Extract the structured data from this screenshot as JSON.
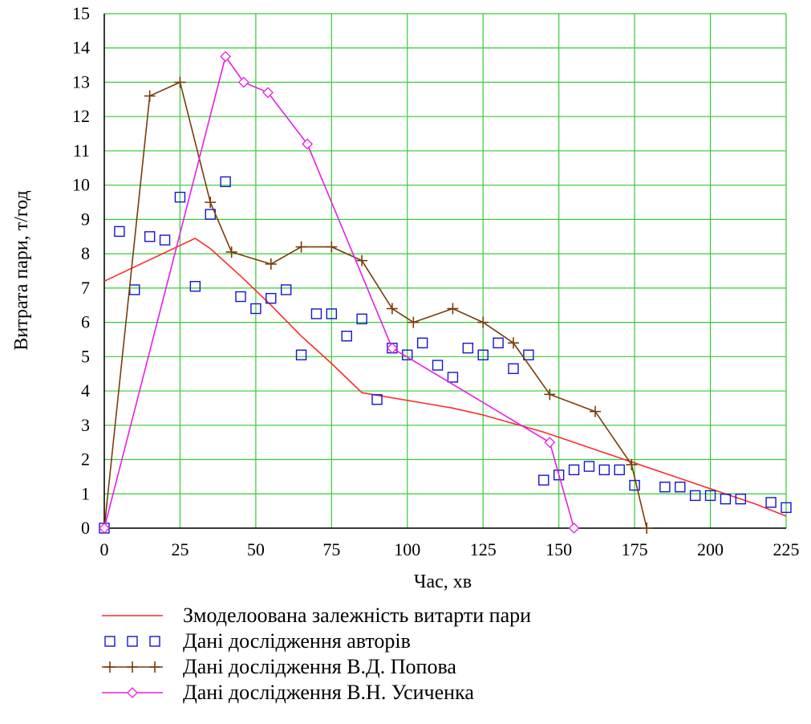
{
  "chart_data": {
    "type": "line",
    "xlabel": "Час, хв",
    "ylabel": "Витрата пари, т/год",
    "xlim": [
      0,
      225
    ],
    "ylim": [
      0,
      15
    ],
    "x_ticks": [
      0,
      25,
      50,
      75,
      100,
      125,
      150,
      175,
      200,
      225
    ],
    "y_ticks": [
      0,
      1,
      2,
      3,
      4,
      5,
      6,
      7,
      8,
      9,
      10,
      11,
      12,
      13,
      14,
      15
    ],
    "grid": true,
    "grid_color": "#33cc33",
    "legend_placement": "bottom",
    "series": [
      {
        "name": "Змоделоована  залежність витарти пари",
        "style": "line",
        "color": "#ff2a2a",
        "x": [
          0,
          30,
          35,
          45,
          55,
          65,
          75,
          85,
          95,
          105,
          115,
          125,
          135,
          145,
          155,
          165,
          175,
          185,
          195,
          205,
          215,
          225
        ],
        "y": [
          7.2,
          8.45,
          8.15,
          7.35,
          6.5,
          5.6,
          4.8,
          3.95,
          3.8,
          3.65,
          3.5,
          3.3,
          3.05,
          2.8,
          2.5,
          2.2,
          1.9,
          1.6,
          1.3,
          1.0,
          0.7,
          0.35
        ]
      },
      {
        "name": "Дані дослідження авторів",
        "style": "markers-square",
        "color": "#1414d2",
        "x": [
          0,
          5,
          10,
          15,
          20,
          25,
          30,
          35,
          40,
          45,
          50,
          55,
          60,
          65,
          70,
          75,
          80,
          85,
          90,
          95,
          100,
          105,
          110,
          115,
          120,
          125,
          130,
          135,
          140,
          145,
          150,
          155,
          160,
          165,
          170,
          175,
          185,
          190,
          195,
          200,
          205,
          210,
          220,
          225
        ],
        "y": [
          0,
          8.65,
          6.95,
          8.5,
          8.4,
          9.65,
          7.05,
          9.15,
          10.1,
          6.75,
          6.4,
          6.7,
          6.95,
          5.05,
          6.25,
          6.25,
          5.6,
          6.1,
          3.75,
          5.25,
          5.05,
          5.4,
          4.75,
          4.4,
          5.25,
          5.05,
          5.4,
          4.65,
          5.05,
          1.4,
          1.55,
          1.7,
          1.8,
          1.7,
          1.7,
          1.25,
          1.2,
          1.2,
          0.95,
          0.95,
          0.85,
          0.85,
          0.75,
          0.6
        ]
      },
      {
        "name": "Дані дослідження В.Д. Попова",
        "style": "line-plus",
        "color": "#7a3c0a",
        "x": [
          0,
          15,
          25,
          35,
          42,
          55,
          65,
          75,
          85,
          95,
          102,
          115,
          125,
          135,
          147,
          162,
          174,
          179
        ],
        "y": [
          0,
          12.6,
          13.0,
          9.5,
          8.05,
          7.7,
          8.2,
          8.2,
          7.8,
          6.4,
          6.0,
          6.4,
          6.0,
          5.4,
          3.9,
          3.4,
          1.85,
          0
        ]
      },
      {
        "name": "Дані дослідження В.Н. Усиченка",
        "style": "line-diamond",
        "color": "#e61ee6",
        "x": [
          0,
          40,
          46,
          54,
          67,
          95,
          147,
          155
        ],
        "y": [
          0,
          13.75,
          13.0,
          12.7,
          11.2,
          5.25,
          2.5,
          0
        ]
      }
    ]
  }
}
